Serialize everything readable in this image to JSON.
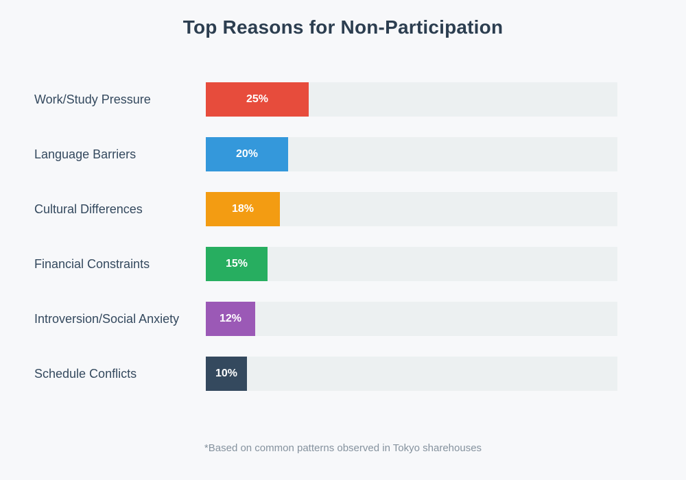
{
  "title": "Top Reasons for Non-Participation",
  "footnote": "*Based on common patterns observed in Tokyo sharehouses",
  "colors": {
    "page_background": "#f7f8fa",
    "title_text": "#2c3e50",
    "label_text": "#34495e",
    "track": "#ecf0f1",
    "value_text": "#ffffff",
    "footnote_text": "#85929e"
  },
  "chart_data": {
    "type": "bar",
    "orientation": "horizontal",
    "title": "Top Reasons for Non-Participation",
    "xlabel": "",
    "ylabel": "",
    "xlim": [
      0,
      100
    ],
    "grid": false,
    "legend": false,
    "categories": [
      "Work/Study Pressure",
      "Language Barriers",
      "Cultural Differences",
      "Financial Constraints",
      "Introversion/Social Anxiety",
      "Schedule Conflicts"
    ],
    "values": [
      25,
      20,
      18,
      15,
      12,
      10
    ],
    "value_labels": [
      "25%",
      "20%",
      "18%",
      "15%",
      "12%",
      "10%"
    ],
    "bar_colors": [
      "#e74c3c",
      "#3498db",
      "#f39c12",
      "#27ae60",
      "#9b59b6",
      "#34495e"
    ],
    "annotation": "*Based on common patterns observed in Tokyo sharehouses"
  }
}
